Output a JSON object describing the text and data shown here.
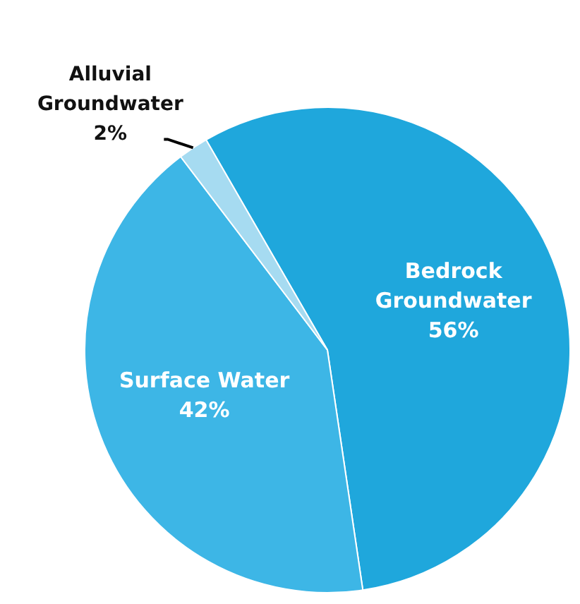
{
  "chart_data": {
    "type": "pie",
    "categories": [
      "Bedrock Groundwater",
      "Surface Water",
      "Alluvial Groundwater"
    ],
    "values": [
      56,
      42,
      2
    ],
    "colors": [
      "#1fa7dc",
      "#3db6e6",
      "#a6dbf1"
    ],
    "value_labels": [
      "56%",
      "42%",
      "2%"
    ]
  }
}
